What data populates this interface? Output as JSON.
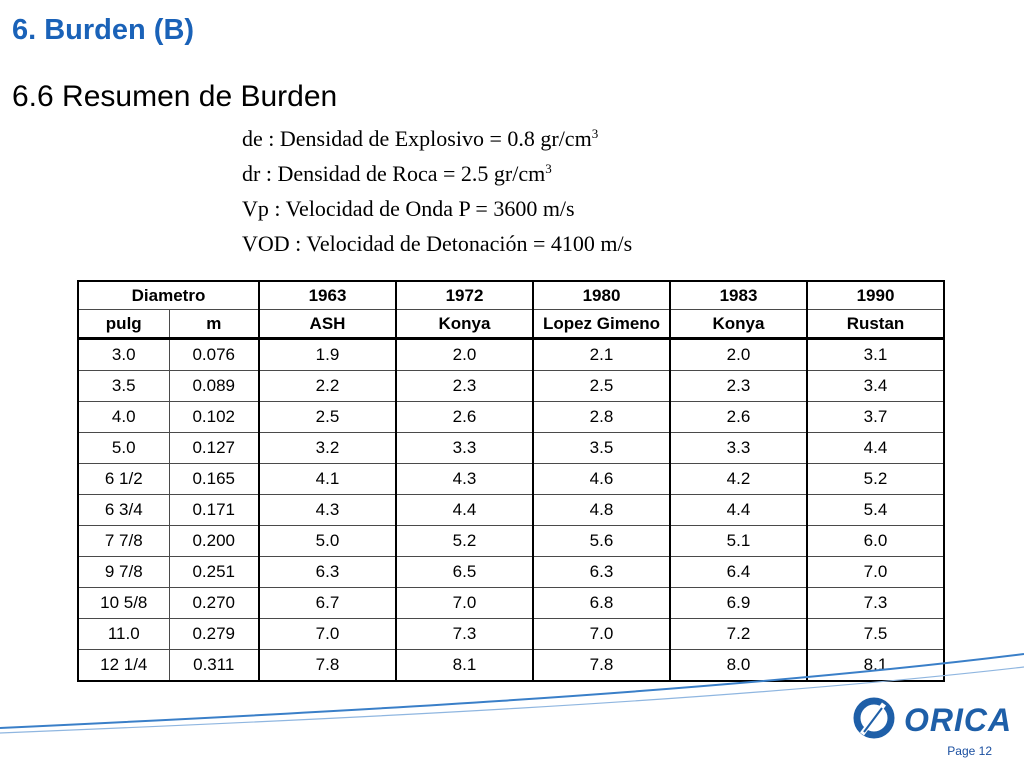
{
  "slide": {
    "title": "6. Burden (B)",
    "subtitle": "6.6 Resumen de Burden",
    "definitions": {
      "de_text": "de : Densidad de Explosivo = 0.8 gr/cm",
      "de_sup": "3",
      "dr_text": "dr : Densidad de Roca = 2.5 gr/cm",
      "dr_sup": "3",
      "vp": "Vp : Velocidad de Onda P = 3600 m/s",
      "vod": "VOD : Velocidad de Detonación = 4100 m/s"
    },
    "page_label": "Page 12",
    "logo_text": "ORICA"
  },
  "table": {
    "header_row1": [
      "Diametro",
      "1963",
      "1972",
      "1980",
      "1983",
      "1990"
    ],
    "header_row2": [
      "pulg",
      "m",
      "ASH",
      "Konya",
      "Lopez Gimeno",
      "Konya",
      "Rustan"
    ],
    "rows": [
      [
        "3.0",
        "0.076",
        "1.9",
        "2.0",
        "2.1",
        "2.0",
        "3.1"
      ],
      [
        "3.5",
        "0.089",
        "2.2",
        "2.3",
        "2.5",
        "2.3",
        "3.4"
      ],
      [
        "4.0",
        "0.102",
        "2.5",
        "2.6",
        "2.8",
        "2.6",
        "3.7"
      ],
      [
        "5.0",
        "0.127",
        "3.2",
        "3.3",
        "3.5",
        "3.3",
        "4.4"
      ],
      [
        "6 1/2",
        "0.165",
        "4.1",
        "4.3",
        "4.6",
        "4.2",
        "5.2"
      ],
      [
        "6 3/4",
        "0.171",
        "4.3",
        "4.4",
        "4.8",
        "4.4",
        "5.4"
      ],
      [
        "7 7/8",
        "0.200",
        "5.0",
        "5.2",
        "5.6",
        "5.1",
        "6.0"
      ],
      [
        "9 7/8",
        "0.251",
        "6.3",
        "6.5",
        "6.3",
        "6.4",
        "7.0"
      ],
      [
        "10 5/8",
        "0.270",
        "6.7",
        "7.0",
        "6.8",
        "6.9",
        "7.3"
      ],
      [
        "11.0",
        "0.279",
        "7.0",
        "7.3",
        "7.0",
        "7.2",
        "7.5"
      ],
      [
        "12 1/4",
        "0.311",
        "7.8",
        "8.1",
        "7.8",
        "8.0",
        "8.1"
      ]
    ]
  },
  "colors": {
    "title": "#1a62b8",
    "swoosh": "#3a7fc8",
    "logo": "#1e5fa8"
  }
}
